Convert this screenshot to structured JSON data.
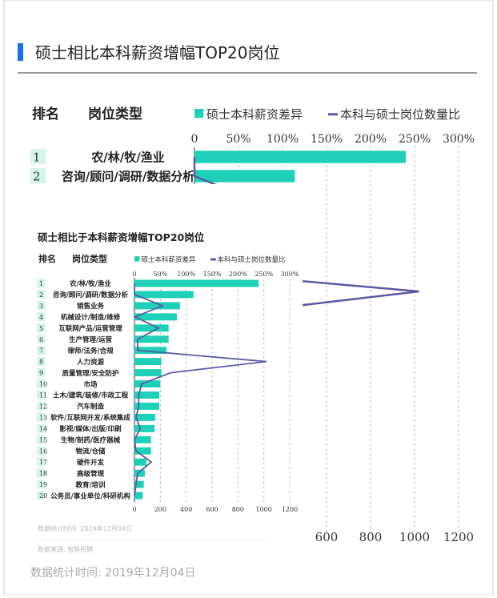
{
  "page": {
    "title": "硕士相比本科薪资增幅TOP20岗位",
    "footnote": "数据统计时间: 2019年12月04日"
  },
  "colors": {
    "accent": "#1a6cf0",
    "bar": "#1ed0b8",
    "line": "#5a5aa0",
    "rank_bg": "#d5f4ec"
  },
  "inset": {
    "title": "硕士相比于本科薪资增幅TOP20岗位",
    "footnote": "数据统计时间: 2019年12月04日",
    "source": "数据来源: 智联招聘"
  },
  "chart_data": {
    "type": "bar",
    "orientation": "horizontal",
    "column_headers": {
      "rank": "排名",
      "category": "岗位类型"
    },
    "ranks": [
      "1",
      "2",
      "3",
      "4",
      "5",
      "6",
      "7",
      "8",
      "9",
      "10",
      "11",
      "12",
      "13",
      "14",
      "15",
      "16",
      "17",
      "18",
      "19",
      "20"
    ],
    "categories": [
      "农/林/牧/渔业",
      "咨询/顾问/调研/数据分析",
      "销售业务",
      "机械设计/制造/维修",
      "互联网产品/运营管理",
      "生产管理/运营",
      "律师/法务/合规",
      "人力资源",
      "质量管理/安全防护",
      "市场",
      "土木/建筑/装修/市政工程",
      "汽车制造",
      "软件/互联网开发/系统集成",
      "影视/媒体/出版/印刷",
      "生物/制药/医疗器械",
      "物流/仓储",
      "硬件开发",
      "高级管理",
      "教育/培训",
      "公务员/事业单位/科研机构"
    ],
    "series": [
      {
        "name": "硕士本科薪资差异",
        "type": "bar",
        "axis": "top",
        "unit": "%",
        "values": [
          240,
          114,
          88,
          82,
          66,
          66,
          62,
          52,
          52,
          50,
          48,
          48,
          40,
          39,
          32,
          32,
          23,
          20,
          18,
          16
        ]
      },
      {
        "name": "本科与硕士岗位数量比",
        "type": "line",
        "axis": "bottom",
        "values": [
          0,
          0,
          217,
          5,
          185,
          25,
          25,
          1020,
          280,
          55,
          33,
          33,
          12,
          45,
          0,
          12,
          130,
          25,
          12,
          0
        ]
      }
    ],
    "top_axis": {
      "range": [
        0,
        300
      ],
      "ticks": [
        "0",
        "50%",
        "100%",
        "150%",
        "200%",
        "250%",
        "300%"
      ]
    },
    "bottom_axis": {
      "range": [
        0,
        1200
      ],
      "ticks": [
        "0",
        "200",
        "400",
        "600",
        "800",
        "1000",
        "1200"
      ]
    },
    "grid": "vertical dashed",
    "legend_placement": "top"
  }
}
